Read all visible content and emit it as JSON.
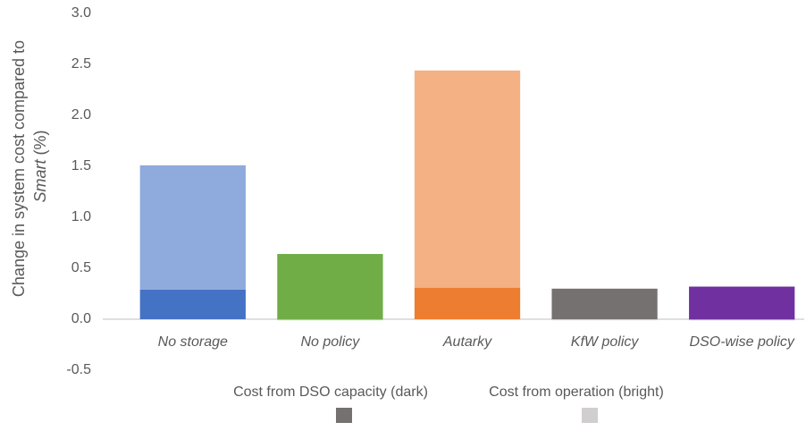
{
  "chart_data": {
    "type": "stacked-bar",
    "y_label": [
      "Change in system cost compared to",
      "Smart",
      " (%)"
    ],
    "categories": [
      "No storage",
      "No policy",
      "Autarky",
      "KfW policy",
      "DSO-wise policy"
    ],
    "series": [
      {
        "name": "Cost from DSO capacity (dark)",
        "color": "#767171",
        "colors": [
          "#4472c4",
          "#70ad47",
          "#ed7d31",
          "#767171",
          "#7030a0"
        ],
        "values": [
          0.29,
          0.64,
          0.31,
          0.3,
          0.32
        ]
      },
      {
        "name": "Cost from operation (bright)",
        "color": "#d0cece",
        "colors": [
          "#8faadc",
          "#a9d18e",
          "#f4b183",
          "#d0cece",
          "#b4a0d0"
        ],
        "values": [
          1.22,
          -0.01,
          2.13,
          -0.01,
          -0.01
        ]
      }
    ],
    "ylim": [
      -0.5,
      3.0
    ],
    "yticks": [
      -0.5,
      {
        "value": 0,
        "label": "0.0"
      },
      0.5,
      {
        "value": 1,
        "label": "1.0"
      },
      1.5,
      {
        "value": 2,
        "label": "2.0"
      },
      2.5,
      {
        "value": 3,
        "label": "3.0"
      }
    ],
    "grid": false
  }
}
